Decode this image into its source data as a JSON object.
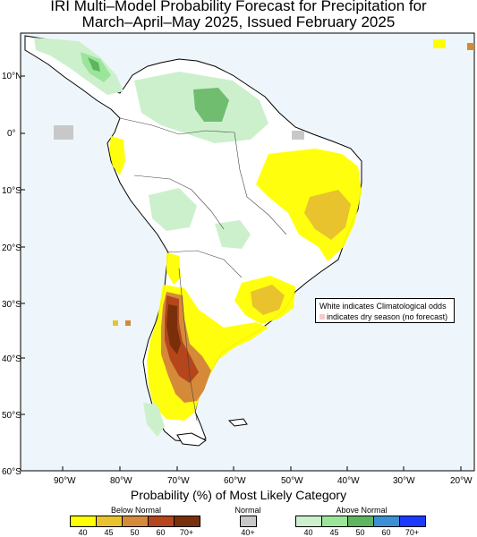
{
  "title": {
    "line1": "IRI Multi–Model Probability Forecast for Precipitation for",
    "line2": "March–April–May 2025, Issued February 2025"
  },
  "map": {
    "lat_labels": [
      "10°N",
      "0°",
      "10°S",
      "20°S",
      "30°S",
      "40°S",
      "50°S",
      "60°S"
    ],
    "lon_labels": [
      "90°W",
      "80°W",
      "70°W",
      "60°W",
      "50°W",
      "40°W",
      "30°W",
      "20°W"
    ],
    "ocean_color": "#eef6fb",
    "land_color": "#ffffff"
  },
  "note": {
    "line1": "White indicates Climatological odds",
    "line2": "indicates dry season (no forecast)"
  },
  "legend": {
    "title": "Probability (%) of Most Likely Category",
    "below": {
      "title": "Below Normal",
      "colors": [
        "#ffff00",
        "#e8c32e",
        "#d58a3a",
        "#b5451b",
        "#7a2f0b"
      ],
      "ticks": [
        "40",
        "45",
        "50",
        "60",
        "70+"
      ]
    },
    "normal": {
      "title": "Normal",
      "color": "#c8c8c8",
      "ticks": [
        "40+"
      ]
    },
    "above": {
      "title": "Above Normal",
      "colors": [
        "#ccf0cc",
        "#9be59b",
        "#5fb45f",
        "#3d8fd5",
        "#1a3bff"
      ],
      "ticks": [
        "40",
        "45",
        "50",
        "60",
        "70+"
      ]
    }
  }
}
